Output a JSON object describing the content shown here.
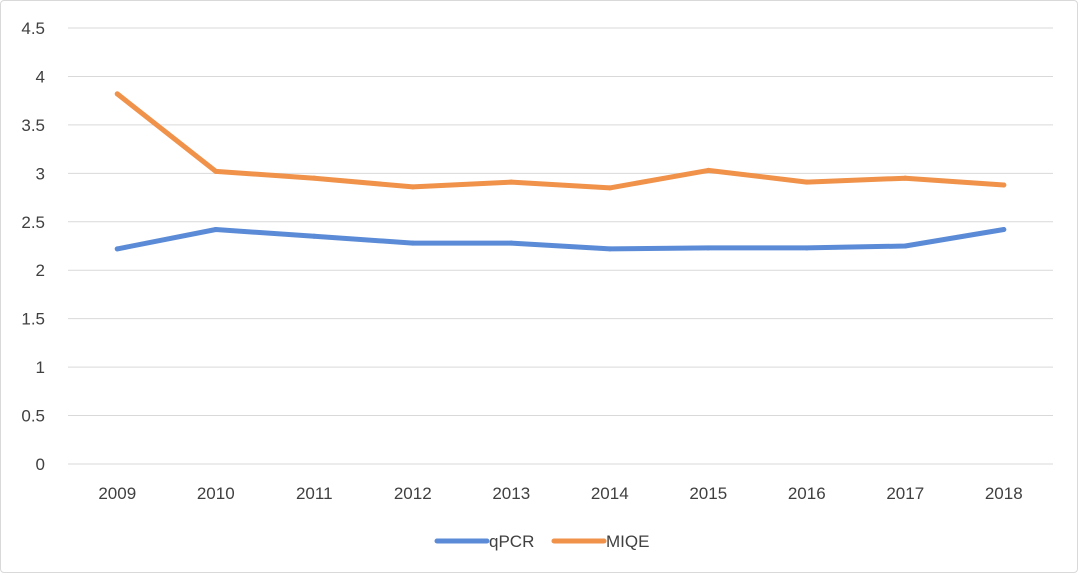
{
  "chart_data": {
    "type": "line",
    "categories": [
      "2009",
      "2010",
      "2011",
      "2012",
      "2013",
      "2014",
      "2015",
      "2016",
      "2017",
      "2018"
    ],
    "series": [
      {
        "name": "qPCR",
        "color": "#5b8bd6",
        "values": [
          2.22,
          2.42,
          2.35,
          2.28,
          2.28,
          2.22,
          2.23,
          2.23,
          2.25,
          2.42
        ]
      },
      {
        "name": "MIQE",
        "color": "#f0924a",
        "values": [
          3.82,
          3.02,
          2.95,
          2.86,
          2.91,
          2.85,
          3.03,
          2.91,
          2.95,
          2.88
        ]
      }
    ],
    "title": "",
    "xlabel": "",
    "ylabel": "",
    "ylim": [
      0,
      4.5
    ],
    "yticks": [
      "0",
      "0.5",
      "1",
      "1.5",
      "2",
      "2.5",
      "3",
      "3.5",
      "4",
      "4.5"
    ],
    "grid": "horizontal",
    "legend": "bottom"
  }
}
